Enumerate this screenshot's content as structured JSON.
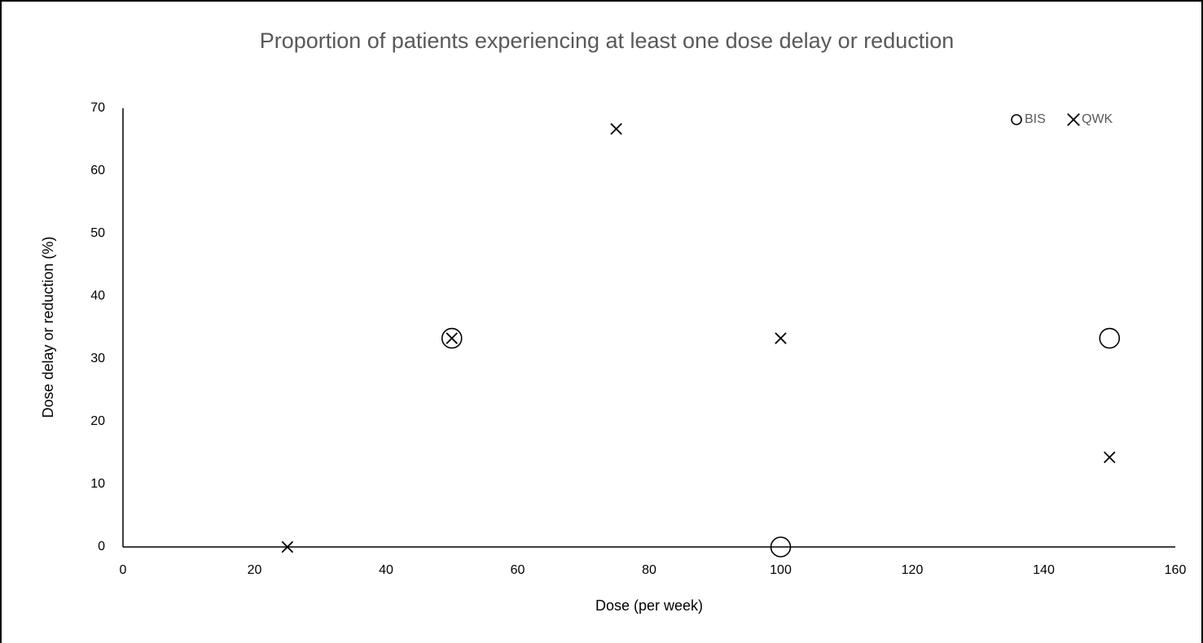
{
  "chart_data": {
    "type": "scatter",
    "title": "Proportion of patients experiencing at least one dose delay or reduction",
    "x_label": "Dose (per week)",
    "y_label": "Dose delay or reduction (%)",
    "xlim": [
      0,
      160
    ],
    "xticks": [
      0,
      20,
      40,
      60,
      80,
      100,
      120,
      140,
      160
    ],
    "ylim": [
      0,
      70
    ],
    "yticks": [
      0,
      10,
      20,
      30,
      40,
      50,
      60,
      70
    ],
    "grid": false,
    "legend": "top-right",
    "series": [
      {
        "name": "BIS",
        "color": "#000000",
        "marker": "circle",
        "x": [
          50,
          100,
          150
        ],
        "values": [
          33.3,
          0,
          33.3
        ]
      },
      {
        "name": "QWK",
        "color": "#000000",
        "marker": "x",
        "x": [
          25,
          50,
          75,
          100,
          150
        ],
        "values": [
          0,
          33.3,
          66.7,
          33.3,
          14.3
        ]
      }
    ]
  }
}
